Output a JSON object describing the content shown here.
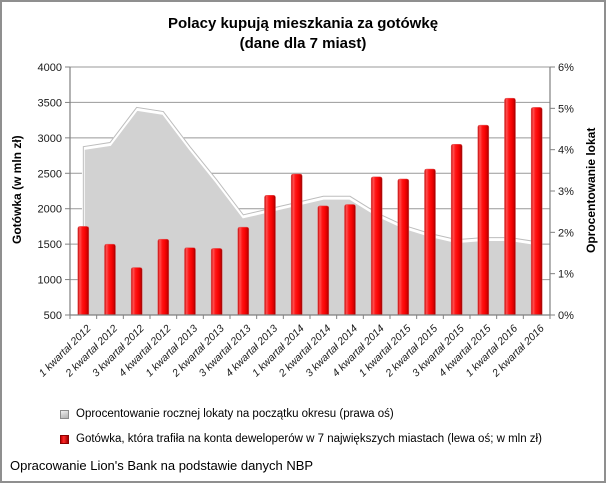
{
  "title": {
    "line1": "Polacy kupują mieszkania za gotówkę",
    "line2": "(dane dla 7 miast)"
  },
  "chart_data": {
    "type": "combo",
    "categories": [
      "1 kwartał 2012",
      "2 kwartał 2012",
      "3 kwartał 2012",
      "4 kwartał 2012",
      "1 kwartał 2013",
      "2 kwartał 2013",
      "3 kwartał 2013",
      "4 kwartał 2013",
      "1 kwartał 2014",
      "2 kwartał 2014",
      "3 kwartał 2014",
      "4 kwartał 2014",
      "1 kwartał 2015",
      "2 kwartał 2015",
      "3 kwartał 2015",
      "4 kwartał 2015",
      "1 kwartał 2016",
      "2 kwartał 2016"
    ],
    "series": [
      {
        "name": "Oprocentowanie rocznej lokaty na początku okresu (prawa oś)",
        "type": "area",
        "axis": "right",
        "color": "#d2d2d2",
        "values": [
          4.0,
          4.1,
          4.95,
          4.85,
          4.0,
          3.2,
          2.35,
          2.5,
          2.65,
          2.8,
          2.8,
          2.4,
          2.1,
          1.9,
          1.75,
          1.8,
          1.8,
          1.7
        ]
      },
      {
        "name": "Gotówka, która trafiła na konta deweloperów w 7 największych miastach (lewa oś; w mln zł)",
        "type": "bar",
        "axis": "left",
        "color": "#ee0000",
        "values": [
          1750,
          1500,
          1170,
          1570,
          1450,
          1440,
          1740,
          2190,
          2490,
          2040,
          2060,
          2450,
          2420,
          2560,
          2910,
          3180,
          3560,
          3430
        ]
      }
    ],
    "left_axis": {
      "title": "Gotówka (w mln zł)",
      "min": 500,
      "max": 4000,
      "step": 500
    },
    "right_axis": {
      "title": "Oprocentowanie lokat",
      "min": 0,
      "max": 6,
      "step": 1,
      "suffix": "%"
    },
    "grid": true,
    "legend_position": "bottom",
    "grid_color": "#999999",
    "axis_color": "#808080",
    "tick_label_color": "#1a1a1a"
  },
  "footer": {
    "text": "Opracowanie Lion's Bank na podstawie danych NBP"
  }
}
